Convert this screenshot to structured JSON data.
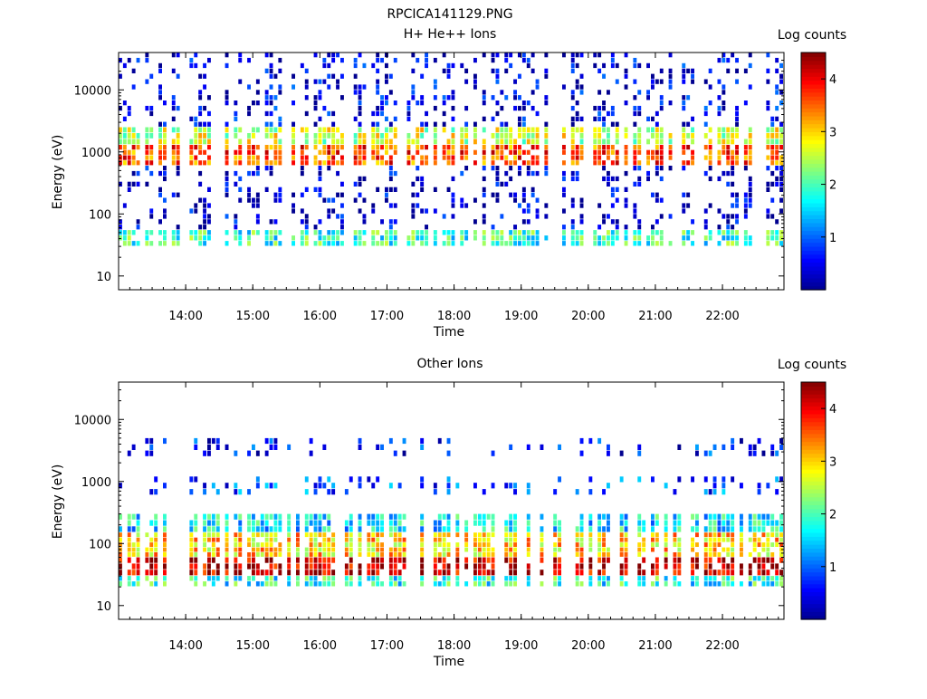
{
  "figure_title": "RPCICA141129.PNG",
  "colorbar_range": [
    0,
    4.5
  ],
  "colormap": [
    "#00008f",
    "#0000ff",
    "#0080ff",
    "#00ffff",
    "#80ff80",
    "#ffff00",
    "#ff8000",
    "#ff0000",
    "#800000"
  ],
  "chart_data": [
    {
      "type": "heatmap",
      "title": "H+ He++ Ions",
      "xlabel": "Time",
      "ylabel": "Energy (eV)",
      "colorbar_label": "Log counts",
      "y_scale": "log",
      "ylim": [
        6,
        40000
      ],
      "xlim": [
        "13:00",
        "22:55"
      ],
      "x_tick_labels": [
        "14:00",
        "15:00",
        "16:00",
        "17:00",
        "18:00",
        "19:00",
        "20:00",
        "21:00",
        "22:00"
      ],
      "y_tick_labels": [
        "10",
        "100",
        "1000",
        "10000"
      ],
      "colorbar_tick_labels": [
        "1",
        "2",
        "3",
        "4"
      ],
      "bands": [
        {
          "energy_eV": [
            600,
            1300
          ],
          "log_counts": 3.6
        },
        {
          "energy_eV": [
            1300,
            2500
          ],
          "log_counts": 2.6
        },
        {
          "energy_eV": [
            30,
            55
          ],
          "log_counts": 1.9
        },
        {
          "energy_eV": [
            2500,
            40000
          ],
          "log_counts": 0.4
        },
        {
          "energy_eV": [
            55,
            600
          ],
          "log_counts": 0.3
        }
      ]
    },
    {
      "type": "heatmap",
      "title": "Other Ions",
      "xlabel": "Time",
      "ylabel": "Energy (eV)",
      "colorbar_label": "Log counts",
      "y_scale": "log",
      "ylim": [
        6,
        40000
      ],
      "xlim": [
        "13:00",
        "22:55"
      ],
      "x_tick_labels": [
        "14:00",
        "15:00",
        "16:00",
        "17:00",
        "18:00",
        "19:00",
        "20:00",
        "21:00",
        "22:00"
      ],
      "y_tick_labels": [
        "10",
        "100",
        "1000",
        "10000"
      ],
      "colorbar_tick_labels": [
        "1",
        "2",
        "3",
        "4"
      ],
      "bands": [
        {
          "energy_eV": [
            30,
            60
          ],
          "log_counts": 4.2
        },
        {
          "energy_eV": [
            60,
            150
          ],
          "log_counts": 3.0
        },
        {
          "energy_eV": [
            150,
            300
          ],
          "log_counts": 1.6
        },
        {
          "energy_eV": [
            600,
            1200
          ],
          "log_counts": 0.9
        },
        {
          "energy_eV": [
            2500,
            5000
          ],
          "log_counts": 0.6
        },
        {
          "energy_eV": [
            20,
            30
          ],
          "log_counts": 1.8
        }
      ]
    }
  ]
}
